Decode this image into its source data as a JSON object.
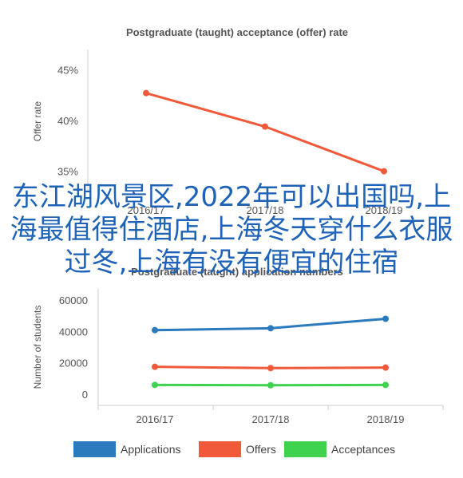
{
  "overlay_text": "东江湖风景区,2022年可以出国吗,上海最值得住酒店,上海冬天穿什么衣服过冬,上海有没有便宜的住宿",
  "chart_data": [
    {
      "type": "line",
      "title": "Postgraduate (taught) acceptance (offer) rate",
      "ylabel": "Offer rate",
      "xlabel": "",
      "categories": [
        "2016/17",
        "2017/18",
        "2018/19"
      ],
      "values": [
        42.7,
        39.4,
        35.0
      ],
      "ylim": [
        33,
        47
      ],
      "y_ticks": [
        "35%",
        "40%",
        "45%"
      ],
      "y_tick_values": [
        35,
        40,
        45
      ],
      "color": "#f05a3a",
      "grid": false
    },
    {
      "type": "line",
      "title": "Postgraduate (taught) application numbers",
      "ylabel": "Number of students",
      "xlabel": "",
      "categories": [
        "2016/17",
        "2017/18",
        "2018/19"
      ],
      "ylim": [
        -7000,
        67000
      ],
      "y_ticks": [
        "0",
        "20000",
        "40000",
        "60000"
      ],
      "y_tick_values": [
        0,
        20000,
        40000,
        60000
      ],
      "grid": false,
      "legend_position": "bottom",
      "series": [
        {
          "name": "Applications",
          "values": [
            40800,
            42000,
            48000
          ],
          "color": "#2a7bbd"
        },
        {
          "name": "Offers",
          "values": [
            17500,
            16700,
            17000
          ],
          "color": "#f05a3a"
        },
        {
          "name": "Acceptances",
          "values": [
            6000,
            5800,
            6000
          ],
          "color": "#3fd24f"
        }
      ]
    }
  ]
}
